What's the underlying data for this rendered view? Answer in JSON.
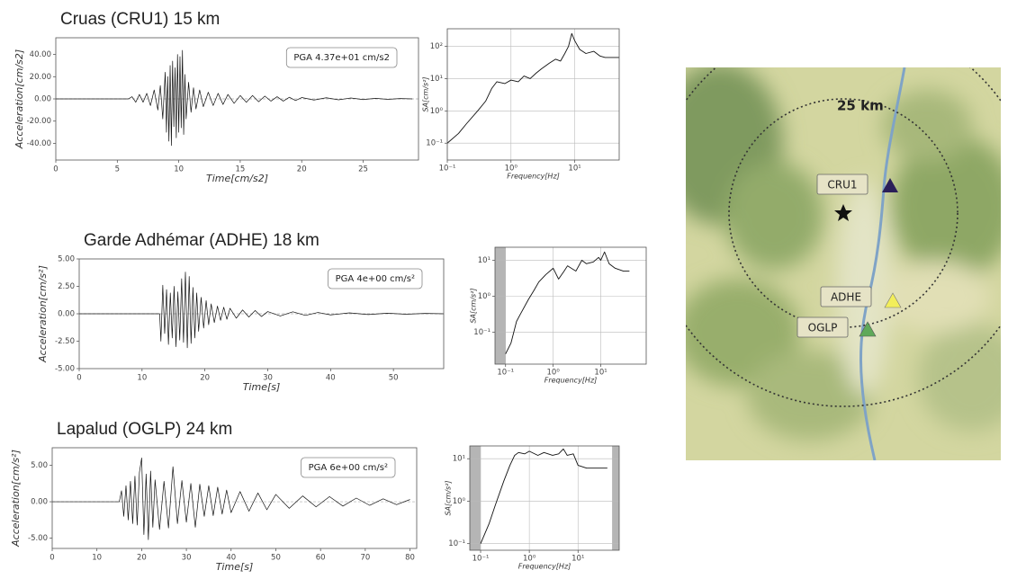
{
  "chart_data": [
    {
      "type": "line",
      "title": "Cruas (CRU1) 15 km",
      "annotation": "PGA  4.37e+01 cm/s2",
      "xlabel": "Time[cm/s2]",
      "ylabel": "Acceleration[cm/s2]",
      "color": "#111111",
      "xlim": [
        0,
        29.5
      ],
      "ylim": [
        -55,
        55
      ],
      "xticks": [
        0,
        5,
        10,
        15,
        20,
        25
      ],
      "yticks": [
        {
          "value": 40,
          "label": "40.00"
        },
        {
          "value": 20,
          "label": "20.00"
        },
        {
          "value": 0,
          "label": "0.00"
        },
        {
          "value": -20,
          "label": "-20.00"
        },
        {
          "value": -40,
          "label": "-40.00"
        }
      ],
      "x": [
        0,
        5.9,
        6.2,
        6.5,
        6.8,
        7.1,
        7.4,
        7.7,
        8.0,
        8.3,
        8.5,
        8.7,
        8.9,
        9.0,
        9.1,
        9.2,
        9.3,
        9.4,
        9.5,
        9.6,
        9.7,
        9.8,
        9.9,
        10.0,
        10.1,
        10.2,
        10.3,
        10.4,
        10.5,
        10.6,
        10.8,
        11.0,
        11.2,
        11.4,
        11.7,
        12.0,
        12.4,
        12.8,
        13.2,
        13.6,
        14.0,
        14.5,
        15.0,
        15.5,
        16.0,
        16.5,
        17.0,
        17.5,
        18.0,
        18.5,
        19.0,
        19.5,
        20.0,
        21,
        22,
        23,
        24,
        25,
        26,
        27,
        28,
        29
      ],
      "values": [
        0,
        0,
        2,
        -3,
        4,
        -3,
        5,
        -6,
        8,
        -10,
        12,
        -18,
        24,
        -30,
        20,
        -38,
        30,
        -42,
        34,
        -25,
        28,
        -35,
        40,
        -30,
        38,
        -26,
        43.7,
        -32,
        22,
        -18,
        15,
        -12,
        10,
        -9,
        8,
        -7,
        6,
        -6,
        5,
        -5,
        4,
        -4,
        3,
        -3,
        3,
        -2.5,
        2.5,
        -2,
        2,
        -2,
        1.5,
        -1.5,
        1.2,
        -1,
        1,
        -0.8,
        0.8,
        -0.6,
        0.5,
        -0.4,
        0.3,
        0
      ]
    },
    {
      "type": "line",
      "xscale": "log",
      "yscale": "log",
      "grid": true,
      "xlabel": "Frequency[Hz]",
      "ylabel": "SA[cm/s²]",
      "color": "#111111",
      "xlim": [
        0.1,
        50
      ],
      "ylim": [
        0.03,
        350
      ],
      "xticks": [
        {
          "value": 0.1,
          "label": "10⁻¹"
        },
        {
          "value": 1,
          "label": "10⁰"
        },
        {
          "value": 10,
          "label": "10¹"
        }
      ],
      "yticks": [
        {
          "value": 0.1,
          "label": "10⁻¹"
        },
        {
          "value": 1,
          "label": "10⁰"
        },
        {
          "value": 10,
          "label": "10¹"
        },
        {
          "value": 100,
          "label": "10²"
        }
      ],
      "x": [
        0.1,
        0.15,
        0.2,
        0.3,
        0.4,
        0.5,
        0.6,
        0.8,
        1,
        1.3,
        1.6,
        2,
        2.5,
        3,
        4,
        5,
        6,
        7,
        8,
        9,
        10,
        12,
        15,
        20,
        25,
        30,
        40,
        50
      ],
      "values": [
        0.1,
        0.2,
        0.4,
        1,
        2,
        5,
        8,
        7,
        9,
        8,
        12,
        10,
        15,
        20,
        30,
        40,
        35,
        60,
        100,
        250,
        150,
        80,
        60,
        70,
        50,
        45,
        45,
        45
      ]
    },
    {
      "type": "line",
      "title": "Garde Adhémar (ADHE) 18 km",
      "annotation": "PGA  4e+00 cm/s²",
      "xlabel": "Time[s]",
      "ylabel": "Acceleration[cm/s²]",
      "color": "#111111",
      "xlim": [
        0,
        58
      ],
      "ylim": [
        -5,
        5
      ],
      "xticks": [
        0,
        10,
        20,
        30,
        40,
        50
      ],
      "yticks": [
        {
          "value": 5,
          "label": "5.00"
        },
        {
          "value": 2.5,
          "label": "2.50"
        },
        {
          "value": 0,
          "label": "0.00"
        },
        {
          "value": -2.5,
          "label": "-2.50"
        },
        {
          "value": -5,
          "label": "-5.00"
        }
      ],
      "x": [
        0,
        12.8,
        13.0,
        13.3,
        13.6,
        13.9,
        14.2,
        14.5,
        14.8,
        15.1,
        15.4,
        15.7,
        16.0,
        16.3,
        16.6,
        16.9,
        17.2,
        17.5,
        17.8,
        18.1,
        18.4,
        18.7,
        19.0,
        19.4,
        19.8,
        20.2,
        20.6,
        21.0,
        21.5,
        22.0,
        22.5,
        23,
        23.5,
        24,
        25,
        26,
        27,
        28,
        29,
        30,
        32,
        34,
        36,
        38,
        40,
        43,
        46,
        49,
        52,
        55,
        58
      ],
      "values": [
        0,
        0,
        -2.5,
        2.6,
        -1.8,
        2.2,
        -2.8,
        1.9,
        -2.2,
        2.5,
        -3.0,
        2.0,
        -2.4,
        3.2,
        -2.6,
        3.8,
        -3.1,
        3.4,
        -2.7,
        2.4,
        -2.2,
        1.9,
        -1.6,
        1.5,
        -1.3,
        1.2,
        -1.0,
        0.9,
        -0.8,
        0.7,
        -0.6,
        0.6,
        -0.5,
        0.5,
        -0.4,
        0.35,
        -0.3,
        0.3,
        -0.25,
        0.2,
        -0.2,
        0.18,
        -0.15,
        0.12,
        -0.1,
        0.08,
        -0.07,
        0.05,
        -0.04,
        0.03,
        0
      ]
    },
    {
      "type": "line",
      "xscale": "log",
      "yscale": "log",
      "grid": true,
      "xlabel": "Frequency[Hz]",
      "ylabel": "SA[cm/s²]",
      "color": "#111111",
      "xlim": [
        0.06,
        90
      ],
      "ylim": [
        0.013,
        23
      ],
      "shaded": [
        [
          0.06,
          0.1
        ]
      ],
      "xticks": [
        {
          "value": 0.1,
          "label": "10⁻¹"
        },
        {
          "value": 1,
          "label": "10⁰"
        },
        {
          "value": 10,
          "label": "10¹"
        }
      ],
      "yticks": [
        {
          "value": 0.1,
          "label": "10⁻¹"
        },
        {
          "value": 1,
          "label": "10⁰"
        },
        {
          "value": 10,
          "label": "10¹"
        }
      ],
      "x": [
        0.1,
        0.13,
        0.17,
        0.2,
        0.3,
        0.4,
        0.5,
        0.7,
        1,
        1.3,
        1.7,
        2,
        3,
        4,
        5,
        7,
        9,
        10,
        12,
        15,
        20,
        30,
        40
      ],
      "values": [
        0.025,
        0.05,
        0.2,
        0.3,
        0.8,
        1.5,
        2.5,
        4,
        6,
        3,
        5,
        7,
        5,
        10,
        8,
        9,
        12,
        10,
        17,
        8,
        6,
        5,
        5
      ]
    },
    {
      "type": "line",
      "title": "Lapalud (OGLP) 24 km",
      "annotation": "PGA  6e+00 cm/s²",
      "xlabel": "Time[s]",
      "ylabel": "Acceleration[cm/s²]",
      "color": "#111111",
      "xlim": [
        0,
        81.5
      ],
      "ylim": [
        -6.4,
        7.4
      ],
      "xticks": [
        0,
        10,
        20,
        30,
        40,
        50,
        60,
        70,
        80
      ],
      "yticks": [
        {
          "value": 5,
          "label": "5.00"
        },
        {
          "value": 0,
          "label": "0.00"
        },
        {
          "value": -5,
          "label": "-5.00"
        }
      ],
      "x": [
        0,
        15,
        15.5,
        16,
        16.5,
        17,
        17.5,
        18,
        18.5,
        19,
        19.5,
        20,
        20.5,
        21,
        21.5,
        22,
        22.5,
        23,
        24,
        25,
        26,
        27,
        28,
        29,
        30,
        31,
        32,
        33,
        34,
        35,
        36,
        37,
        38,
        39,
        40,
        42,
        44,
        46,
        48,
        50,
        53,
        56,
        59,
        62,
        65,
        68,
        71,
        74,
        77,
        80
      ],
      "values": [
        0,
        0,
        1.5,
        -2,
        2.2,
        -2.5,
        2.8,
        -3,
        3.5,
        -3.2,
        4,
        6,
        -4.5,
        3.8,
        -5.2,
        4.2,
        -3.5,
        3,
        -3.8,
        2.8,
        -3.6,
        4.8,
        -3,
        2.9,
        -2.8,
        2.5,
        -3.5,
        2.4,
        -2,
        2.2,
        -1.9,
        2,
        -1.7,
        1.6,
        -1.5,
        1.4,
        -1.3,
        1.2,
        -1.1,
        1,
        -0.9,
        0.8,
        -0.7,
        0.7,
        -0.6,
        0.5,
        -0.5,
        0.4,
        -0.4,
        0.3
      ]
    },
    {
      "type": "line",
      "xscale": "log",
      "yscale": "log",
      "grid": true,
      "xlabel": "Frequency[Hz]",
      "ylabel": "SA[cm/s²]",
      "color": "#111111",
      "xlim": [
        0.06,
        70
      ],
      "ylim": [
        0.07,
        20
      ],
      "shaded": [
        [
          0.06,
          0.1
        ],
        [
          50,
          70
        ]
      ],
      "xticks": [
        {
          "value": 0.1,
          "label": "10⁻¹"
        },
        {
          "value": 1,
          "label": "10⁰"
        },
        {
          "value": 10,
          "label": "10¹"
        }
      ],
      "yticks": [
        {
          "value": 0.1,
          "label": "10⁻¹"
        },
        {
          "value": 1,
          "label": "10⁰"
        },
        {
          "value": 10,
          "label": "10¹"
        }
      ],
      "x": [
        0.1,
        0.15,
        0.2,
        0.3,
        0.4,
        0.5,
        0.6,
        0.8,
        1,
        1.5,
        2,
        3,
        4,
        5,
        6,
        8,
        10,
        15,
        20,
        30,
        40
      ],
      "values": [
        0.1,
        0.3,
        0.8,
        3,
        7,
        12,
        14,
        13,
        15,
        12,
        14,
        12,
        13,
        17,
        12,
        13,
        7,
        6,
        6,
        6,
        6
      ]
    }
  ],
  "map": {
    "scale_label": "25 km",
    "stations": [
      {
        "label": "CRU1"
      },
      {
        "label": "ADHE"
      },
      {
        "label": "OGLP"
      }
    ]
  }
}
